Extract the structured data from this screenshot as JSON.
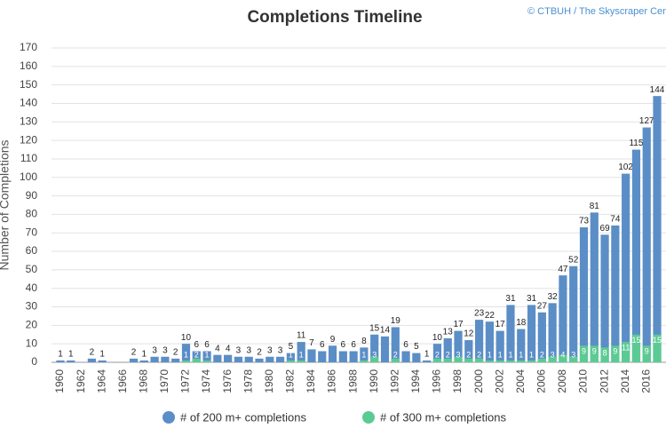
{
  "chart_data": {
    "type": "bar",
    "title": "Completions Timeline",
    "credit": "© CTBUH / The Skyscraper Center",
    "y_label": "Number of Completions",
    "categories": [
      "1960",
      null,
      "1962",
      null,
      "1964",
      null,
      "1966",
      null,
      "1968",
      null,
      "1970",
      null,
      "1972",
      null,
      "1974",
      null,
      "1976",
      null,
      "1978",
      null,
      "1980",
      null,
      "1982",
      null,
      "1984",
      null,
      "1986",
      null,
      "1988",
      null,
      "1990",
      null,
      "1992",
      null,
      "1994",
      null,
      "1996",
      null,
      "1998",
      null,
      "2000",
      null,
      "2002",
      null,
      "2004",
      null,
      "2006",
      null,
      "2008",
      null,
      "2010",
      null,
      "2012",
      null,
      "2014",
      null,
      "2016",
      null
    ],
    "series": [
      {
        "name": "# of 200 m+ completions",
        "color": "#5b8ec6",
        "values": [
          1,
          1,
          0,
          2,
          1,
          0,
          0,
          2,
          1,
          3,
          3,
          2,
          10,
          6,
          6,
          4,
          4,
          3,
          3,
          2,
          3,
          3,
          5,
          11,
          7,
          6,
          9,
          6,
          6,
          8,
          15,
          14,
          19,
          6,
          5,
          1,
          10,
          13,
          17,
          12,
          23,
          22,
          17,
          31,
          18,
          31,
          27,
          32,
          47,
          52,
          73,
          81,
          69,
          74,
          102,
          115,
          127,
          144
        ]
      },
      {
        "name": "# of 300 m+ completions",
        "color": "#5ccb93",
        "values": [
          0,
          0,
          0,
          0,
          0,
          0,
          0,
          0,
          0,
          0,
          0,
          0,
          1,
          2,
          1,
          0,
          0,
          0,
          0,
          0,
          0,
          0,
          1,
          1,
          0,
          0,
          0,
          0,
          0,
          1,
          3,
          0,
          2,
          0,
          0,
          0,
          2,
          2,
          3,
          2,
          2,
          1,
          1,
          1,
          1,
          1,
          2,
          3,
          4,
          3,
          9,
          9,
          8,
          9,
          11,
          15,
          9,
          15
        ]
      }
    ],
    "ylim": [
      0,
      170
    ],
    "yticks": [
      0,
      10,
      20,
      30,
      40,
      50,
      60,
      70,
      80,
      90,
      100,
      110,
      120,
      130,
      140,
      150,
      160,
      170
    ],
    "grid": true
  }
}
